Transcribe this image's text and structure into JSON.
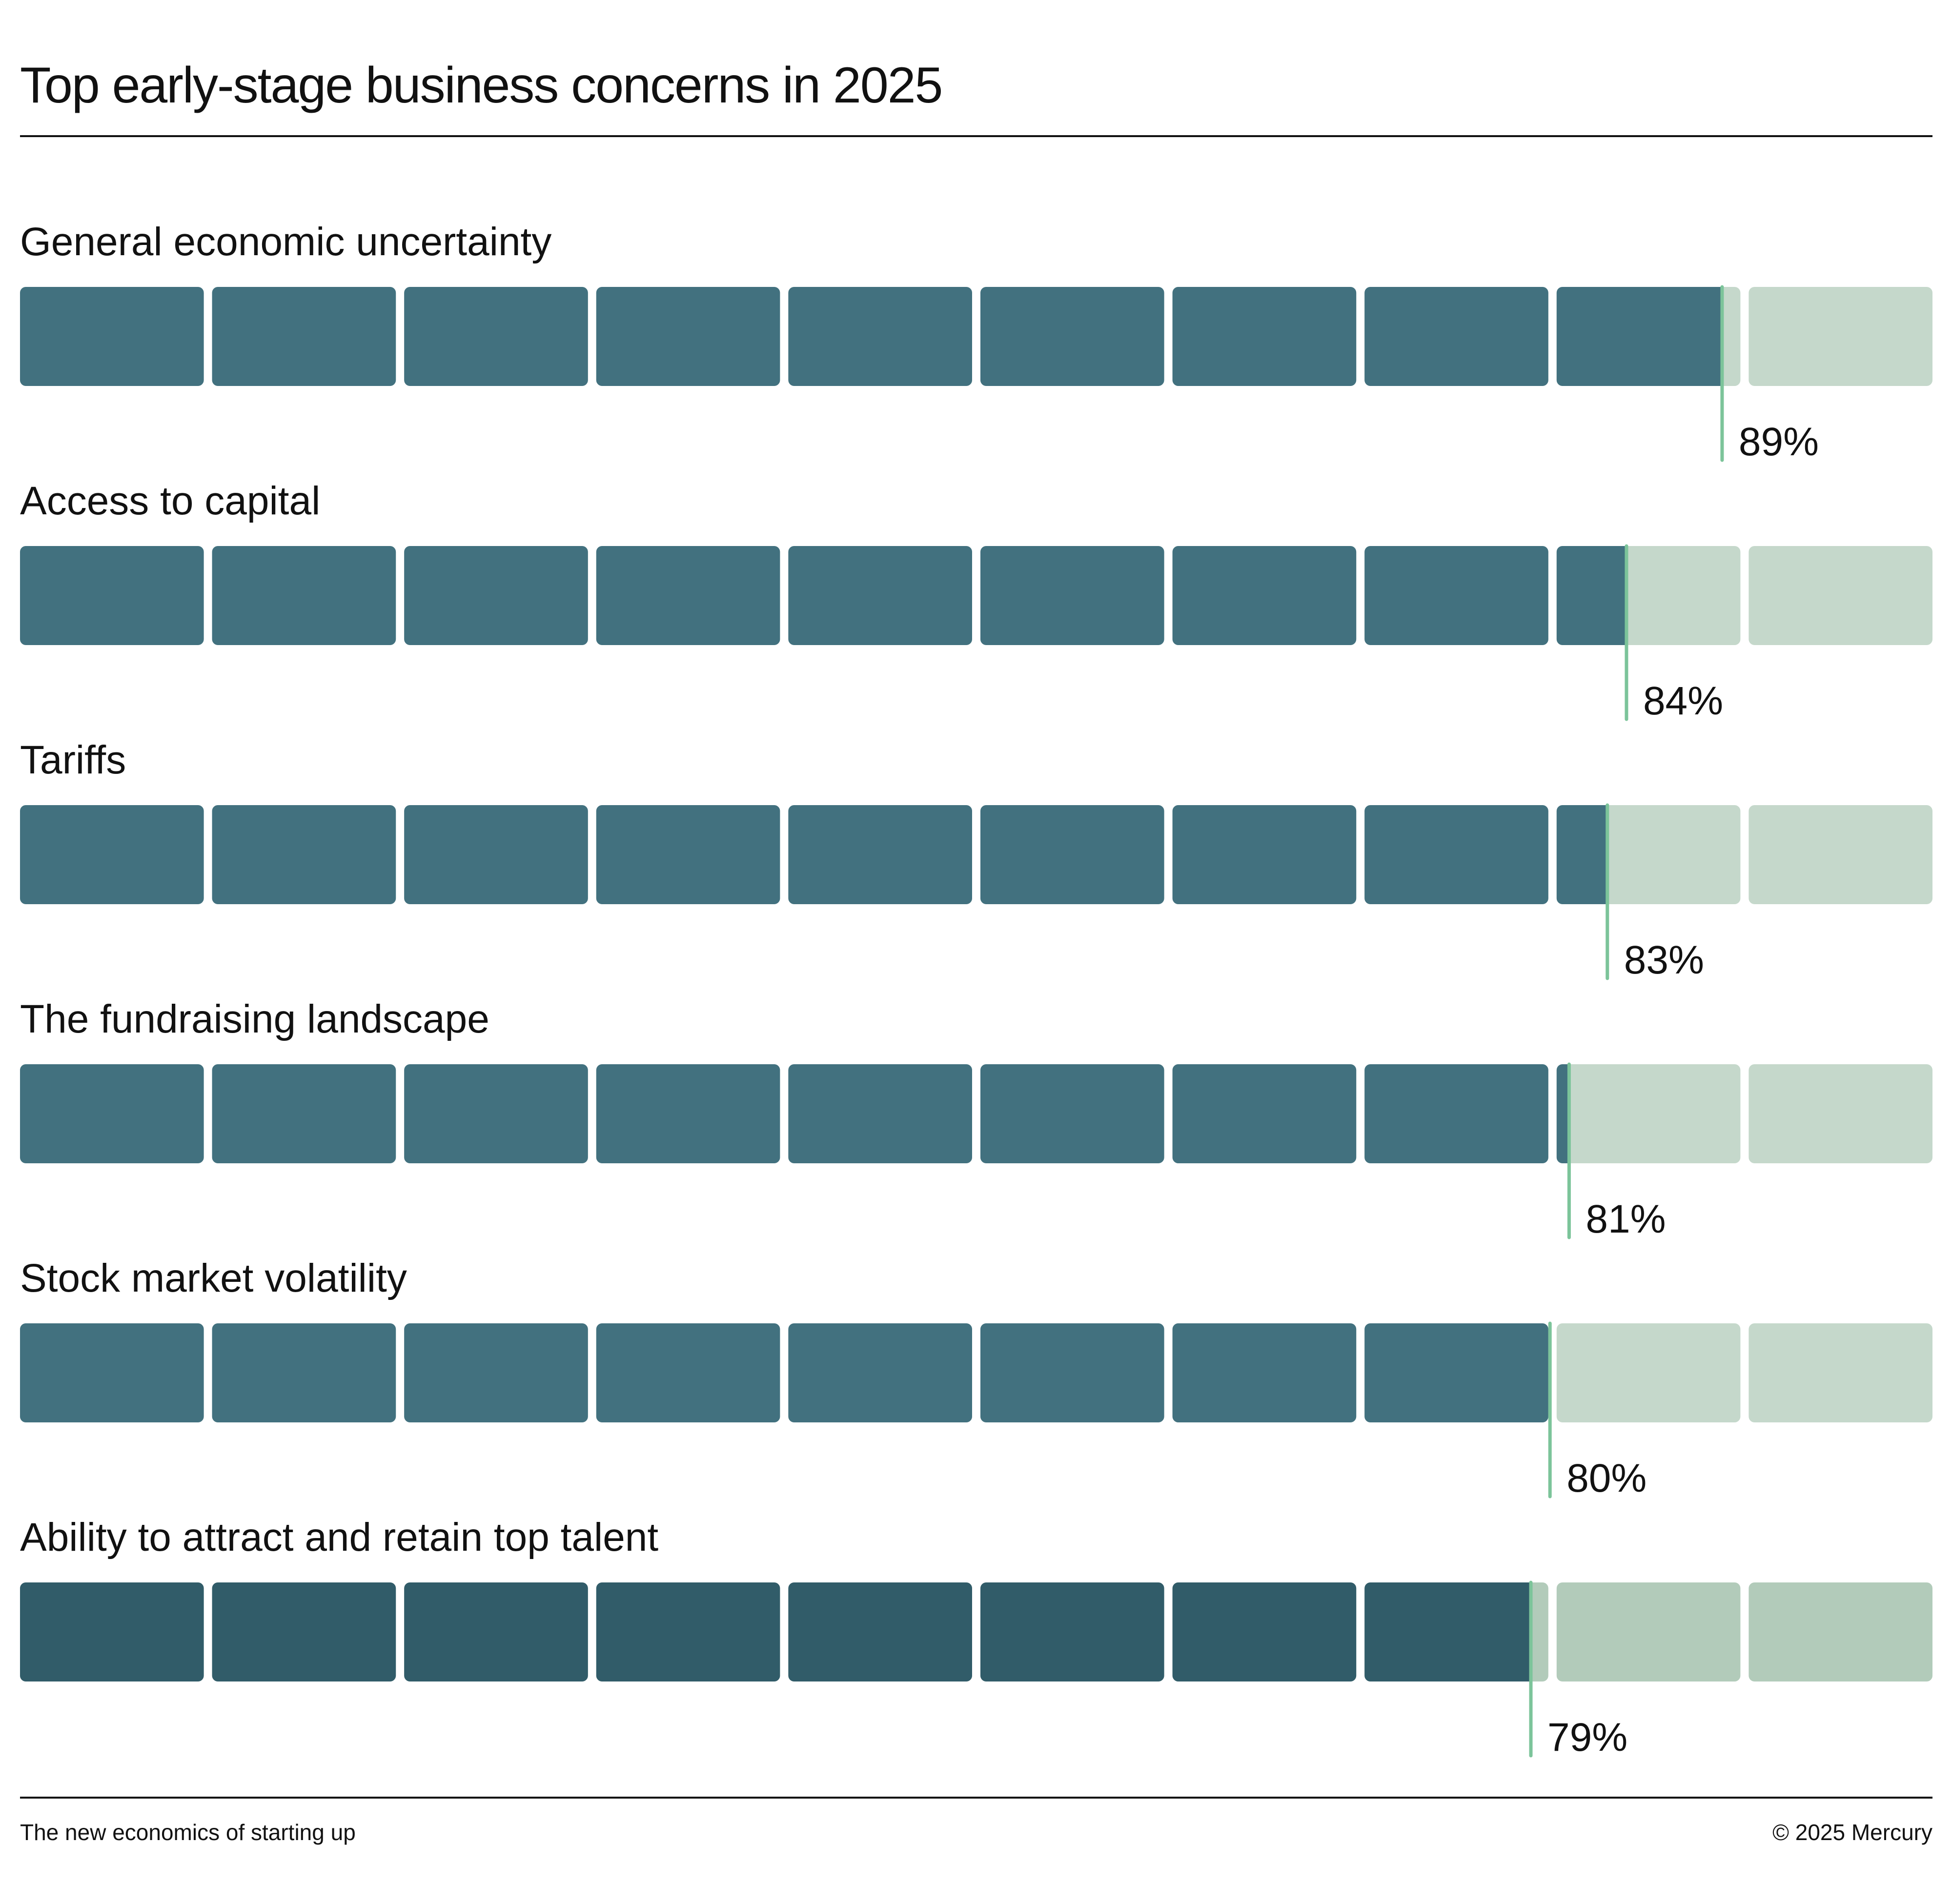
{
  "title": "Top early-stage business concerns in 2025",
  "footer": {
    "left": "The new economics of starting up",
    "right": "© 2025 Mercury"
  },
  "colors": {
    "filled": "#42717F",
    "filled_last_row": "#315C69",
    "empty": "#C5D8CB",
    "empty_last_row": "#B2CBBA",
    "marker": "#7CC49A"
  },
  "chart_data": {
    "type": "bar",
    "orientation": "horizontal",
    "segments_per_bar": 10,
    "scale_max_percent": 100,
    "categories": [
      "General economic uncertainty",
      "Access to capital",
      "Tariffs",
      "The fundraising landscape",
      "Stock market volatility",
      "Ability to attract and retain top talent"
    ],
    "values": [
      89,
      84,
      83,
      81,
      80,
      79
    ],
    "value_labels": [
      "89%",
      "84%",
      "83%",
      "81%",
      "80%",
      "79%"
    ]
  }
}
